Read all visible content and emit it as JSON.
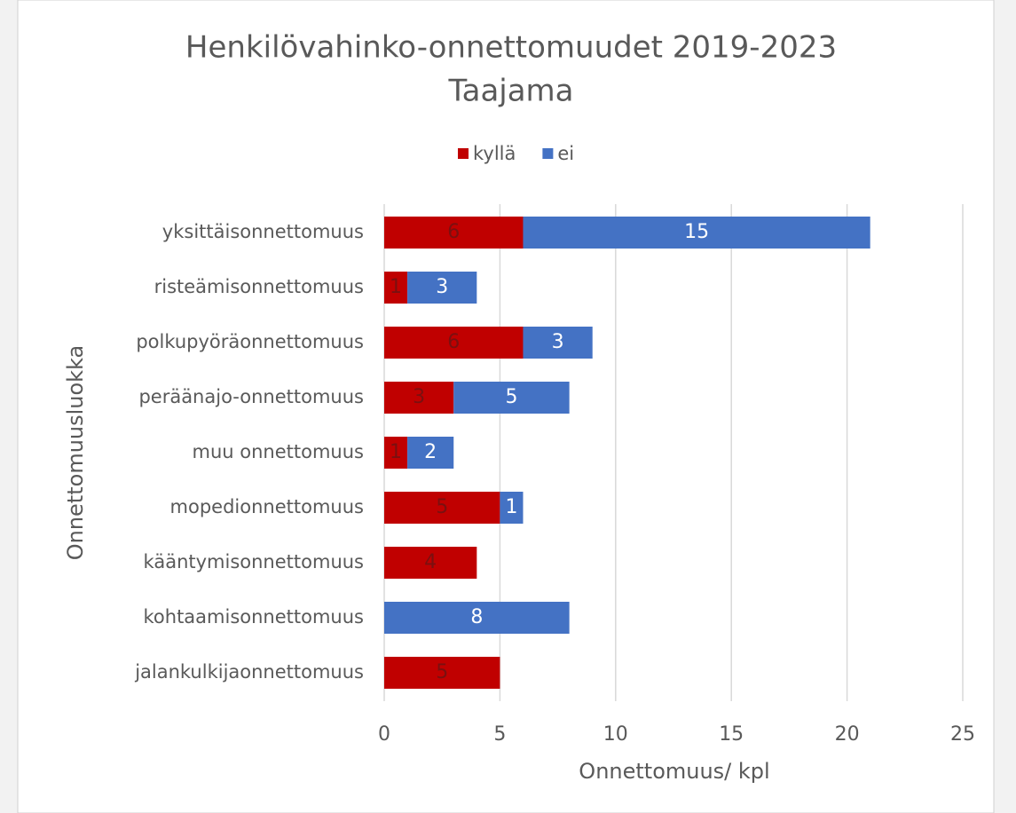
{
  "chart_data": {
    "type": "bar",
    "orientation": "horizontal",
    "stacked": true,
    "title": "Henkilövahinko-onnettomuudet 2019-2023",
    "subtitle": "Taajama",
    "x_label": "Onnettomuus/ kpl",
    "y_label": "Onnettomuusluokka",
    "categories": [
      "yksittäisonnettomuus",
      "risteämisonnettomuus",
      "polkupyöräonnettomuus",
      "peräänajo-onnettomuus",
      "muu onnettomuus",
      "mopedionnettomuus",
      "kääntymisonnettomuus",
      "kohtaamisonnettomuus",
      "jalankulkijaonnettomuus"
    ],
    "series": [
      {
        "name": "kyllä",
        "color": "#c00000",
        "label_color": "#7a1010",
        "values": [
          6,
          1,
          6,
          3,
          1,
          5,
          4,
          null,
          5
        ]
      },
      {
        "name": "ei",
        "color": "#4472c4",
        "label_color": "#ffffff",
        "values": [
          15,
          3,
          3,
          5,
          2,
          1,
          null,
          8,
          null
        ]
      }
    ],
    "xlim": [
      0,
      25
    ],
    "xticks": [
      0,
      5,
      10,
      15,
      20,
      25
    ],
    "grid": true,
    "legend": "top"
  }
}
